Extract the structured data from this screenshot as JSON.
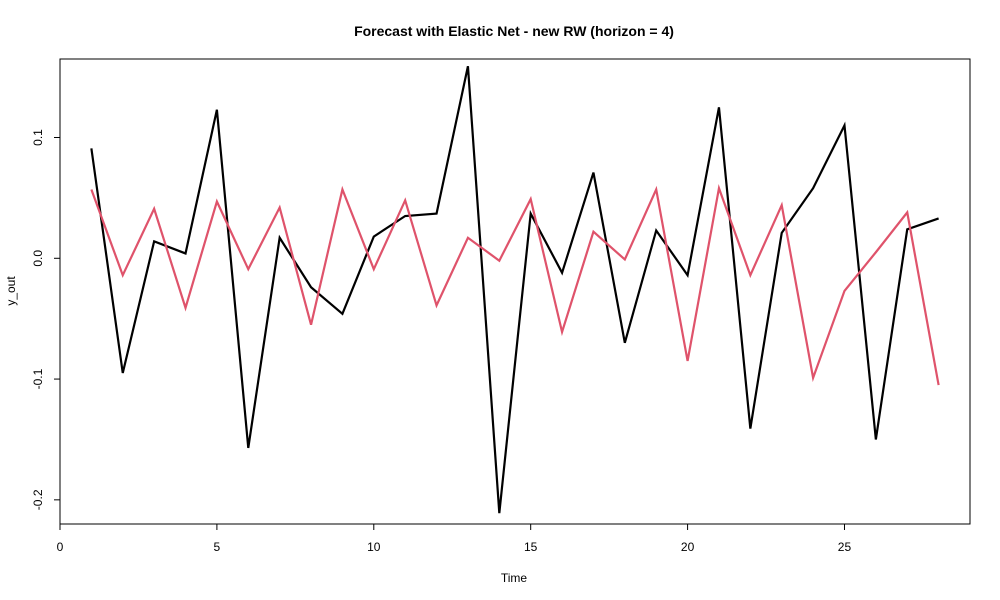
{
  "chart_data": {
    "type": "line",
    "title": "Forecast with Elastic Net - new RW (horizon = 4)",
    "xlabel": "Time",
    "ylabel": "y_out",
    "xlim": [
      0,
      29
    ],
    "ylim": [
      -0.22,
      0.165
    ],
    "x_ticks": [
      0,
      5,
      10,
      15,
      20,
      25
    ],
    "y_ticks": [
      -0.2,
      -0.1,
      0.0,
      0.1
    ],
    "y_tick_labels": [
      "-0.2",
      "-0.1",
      "0.0",
      "0.1"
    ],
    "grid": false,
    "x": [
      1,
      2,
      3,
      4,
      5,
      6,
      7,
      8,
      9,
      10,
      11,
      12,
      13,
      14,
      15,
      16,
      17,
      18,
      19,
      20,
      21,
      22,
      23,
      24,
      25,
      26,
      27,
      28
    ],
    "series": [
      {
        "color": "#000000",
        "values": [
          0.091,
          -0.095,
          0.014,
          0.004,
          0.123,
          -0.157,
          0.017,
          -0.024,
          -0.046,
          0.018,
          0.035,
          0.037,
          0.159,
          -0.211,
          0.037,
          -0.012,
          0.071,
          -0.07,
          0.023,
          -0.014,
          0.125,
          -0.141,
          0.021,
          0.058,
          0.11,
          -0.15,
          0.024,
          0.033
        ]
      },
      {
        "color": "#DF536B",
        "values": [
          0.057,
          -0.014,
          0.041,
          -0.041,
          0.047,
          -0.009,
          0.042,
          -0.055,
          0.057,
          -0.009,
          0.048,
          -0.039,
          0.017,
          -0.002,
          0.049,
          -0.061,
          0.022,
          -0.001,
          0.057,
          -0.085,
          0.058,
          -0.014,
          0.044,
          -0.099,
          -0.027,
          0.005,
          0.038,
          -0.105
        ]
      }
    ]
  }
}
